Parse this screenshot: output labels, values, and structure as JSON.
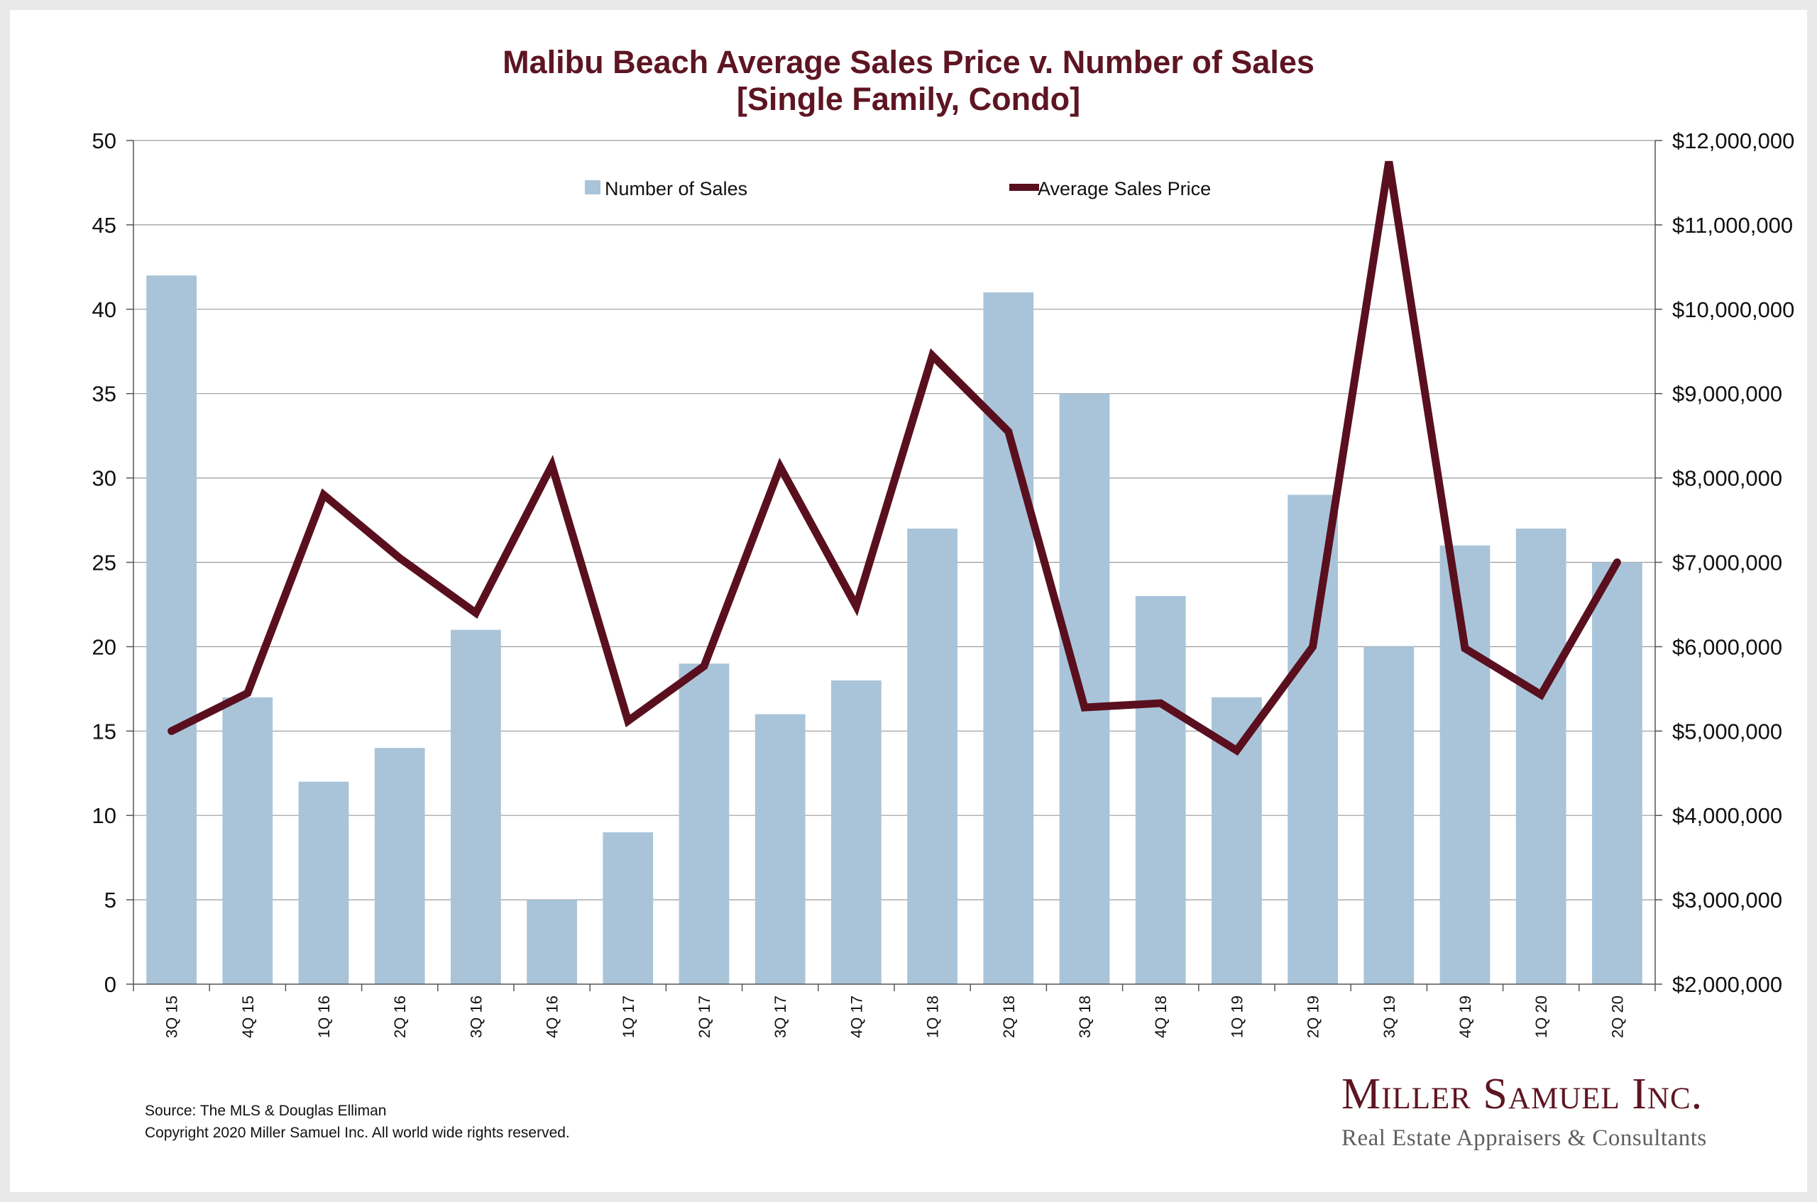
{
  "colors": {
    "bar": "#a9c4d9",
    "line": "#5a0f1f",
    "title": "#5e1522",
    "grid": "#9a9a9a",
    "axis": "#555555"
  },
  "chart_data": {
    "type": "bar+line",
    "title": "Malibu Beach Average Sales Price v. Number of Sales",
    "subtitle": "[Single Family, Condo]",
    "categories": [
      "3Q 15",
      "4Q 15",
      "1Q 16",
      "2Q 16",
      "3Q 16",
      "4Q 16",
      "1Q 17",
      "2Q 17",
      "3Q 17",
      "4Q 17",
      "1Q 18",
      "2Q 18",
      "3Q 18",
      "4Q 18",
      "1Q 19",
      "2Q 19",
      "3Q 19",
      "4Q 19",
      "1Q 20",
      "2Q 20"
    ],
    "series": [
      {
        "name": "Number of Sales",
        "type": "bar",
        "axis": "left",
        "values": [
          42,
          17,
          12,
          14,
          21,
          5,
          9,
          19,
          16,
          18,
          27,
          41,
          35,
          23,
          17,
          29,
          20,
          26,
          27,
          25
        ]
      },
      {
        "name": "Average Sales Price",
        "type": "line",
        "axis": "right",
        "values": [
          5000000,
          5450000,
          7800000,
          7050000,
          6400000,
          8150000,
          5120000,
          5770000,
          8130000,
          6480000,
          9450000,
          8550000,
          5280000,
          5330000,
          4770000,
          6000000,
          11750000,
          5980000,
          5430000,
          7000000
        ]
      }
    ],
    "left_axis": {
      "ylim": [
        0,
        50
      ],
      "ticks": [
        0,
        5,
        10,
        15,
        20,
        25,
        30,
        35,
        40,
        45,
        50
      ],
      "tick_labels": [
        "0",
        "5",
        "10",
        "15",
        "20",
        "25",
        "30",
        "35",
        "40",
        "45",
        "50"
      ]
    },
    "right_axis": {
      "ylim": [
        2000000,
        12000000
      ],
      "ticks": [
        2000000,
        3000000,
        4000000,
        5000000,
        6000000,
        7000000,
        8000000,
        9000000,
        10000000,
        11000000,
        12000000
      ],
      "tick_labels": [
        "$2,000,000",
        "$3,000,000",
        "$4,000,000",
        "$5,000,000",
        "$6,000,000",
        "$7,000,000",
        "$8,000,000",
        "$9,000,000",
        "$10,000,000",
        "$11,000,000",
        "$12,000,000"
      ]
    },
    "grid": true,
    "legend": {
      "position": "top-center",
      "entries": [
        "Number of Sales",
        "Average Sales Price"
      ]
    }
  },
  "footer": {
    "source": "Source: The MLS & Douglas Elliman",
    "copyright": "Copyright 2020 Miller Samuel Inc.  All world wide rights reserved."
  },
  "logo": {
    "name": "Miller Samuel Inc.",
    "tagline": "Real Estate Appraisers & Consultants"
  }
}
